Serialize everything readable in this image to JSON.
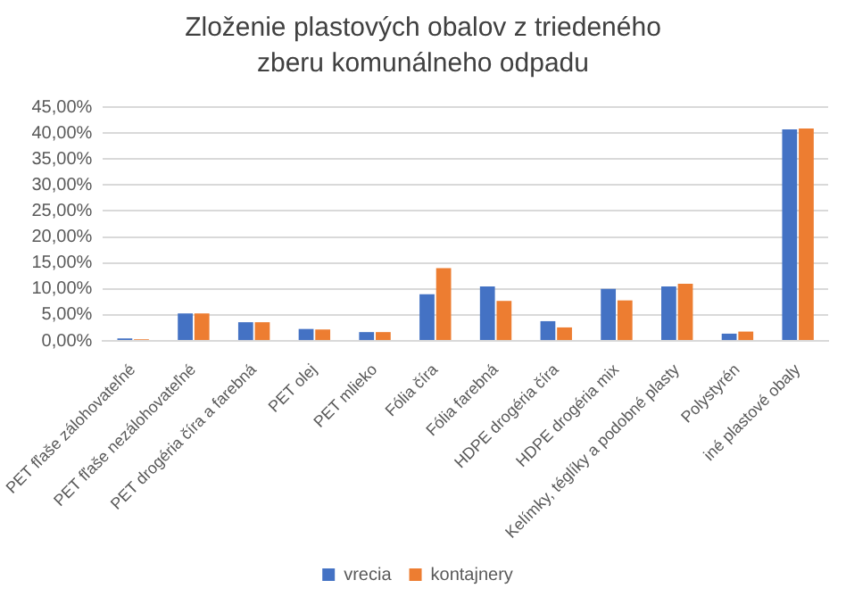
{
  "chart_data": {
    "type": "bar",
    "title": "Zloženie plastových obalov z triedeného zberu komunálneho odpadu",
    "categories": [
      "PET fľaše zálohovateľné",
      "PET fľaše nezálohovateľné",
      "PET drogéria číra a farebná",
      "PET olej",
      "PET mlieko",
      "Fólia číra",
      "Fólia farebná",
      "HDPE drogéria číra",
      "HDPE drogéria mix",
      "Kelímky, téglíky a podobné plasty",
      "Polystyrén",
      "iné plastové obaly"
    ],
    "series": [
      {
        "name": "vrecia",
        "color": "#4472c4",
        "values": [
          0.5,
          5.3,
          3.6,
          2.3,
          1.7,
          9.0,
          10.5,
          3.8,
          10.0,
          10.5,
          1.4,
          40.7
        ]
      },
      {
        "name": "kontajnery",
        "color": "#ed7d31",
        "values": [
          0.3,
          5.3,
          3.6,
          2.2,
          1.7,
          14.0,
          7.7,
          2.6,
          7.8,
          11.0,
          1.8,
          40.9
        ]
      }
    ],
    "ylim": [
      0,
      45
    ],
    "yticks": [
      {
        "value": 0,
        "label": "0,00%"
      },
      {
        "value": 5,
        "label": "5,00%"
      },
      {
        "value": 10,
        "label": "10,00%"
      },
      {
        "value": 15,
        "label": "15,00%"
      },
      {
        "value": 20,
        "label": "20,00%"
      },
      {
        "value": 25,
        "label": "25,00%"
      },
      {
        "value": 30,
        "label": "30,00%"
      },
      {
        "value": 35,
        "label": "35,00%"
      },
      {
        "value": 40,
        "label": "40,00%"
      },
      {
        "value": 45,
        "label": "45,00%"
      }
    ],
    "grid": "y",
    "legend": "bottom"
  }
}
